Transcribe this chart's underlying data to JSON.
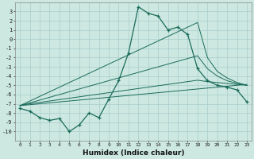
{
  "xlabel": "Humidex (Indice chaleur)",
  "bg_color": "#cce8e0",
  "grid_color": "#aacccc",
  "line_color": "#1a6b5a",
  "x_data": [
    0,
    1,
    2,
    3,
    4,
    5,
    6,
    7,
    8,
    9,
    10,
    11,
    12,
    13,
    14,
    15,
    16,
    17,
    18,
    19,
    20,
    21,
    22,
    23
  ],
  "main_series": [
    -7.5,
    -7.8,
    -8.5,
    -8.8,
    -8.6,
    -10.0,
    -9.3,
    -8.0,
    -8.5,
    -6.5,
    -4.5,
    -1.5,
    3.5,
    2.8,
    2.5,
    1.0,
    1.3,
    0.5,
    -3.2,
    -4.5,
    -5.0,
    -5.2,
    -5.5,
    -6.8
  ],
  "line1": [
    -7.2,
    -7.1,
    -7.0,
    -6.9,
    -6.8,
    -6.7,
    -6.6,
    -6.5,
    -6.4,
    -6.3,
    -6.2,
    -6.1,
    -6.0,
    -5.9,
    -5.8,
    -5.7,
    -5.6,
    -5.5,
    -5.4,
    -5.3,
    -5.2,
    -5.1,
    -5.0,
    -4.9
  ],
  "line2": [
    -7.2,
    -7.0,
    -6.85,
    -6.7,
    -6.55,
    -6.4,
    -6.25,
    -6.1,
    -5.95,
    -5.8,
    -5.65,
    -5.5,
    -5.35,
    -5.2,
    -5.05,
    -4.9,
    -4.75,
    -4.6,
    -4.45,
    -4.6,
    -4.7,
    -4.8,
    -4.9,
    -5.0
  ],
  "line3": [
    -7.2,
    -6.9,
    -6.6,
    -6.3,
    -6.0,
    -5.7,
    -5.4,
    -5.1,
    -4.8,
    -4.5,
    -4.2,
    -3.9,
    -3.6,
    -3.3,
    -3.0,
    -2.7,
    -2.4,
    -2.1,
    -1.8,
    -3.2,
    -4.0,
    -4.5,
    -4.8,
    -5.0
  ],
  "line4": [
    -7.2,
    -6.7,
    -6.2,
    -5.7,
    -5.2,
    -4.7,
    -4.2,
    -3.7,
    -3.2,
    -2.7,
    -2.2,
    -1.7,
    -1.2,
    -0.7,
    -0.2,
    0.3,
    0.8,
    1.3,
    1.8,
    -2.0,
    -3.5,
    -4.2,
    -4.7,
    -5.0
  ],
  "ylim": [
    -11,
    4
  ],
  "xlim": [
    -0.5,
    23.5
  ],
  "yticks": [
    3,
    2,
    1,
    0,
    -1,
    -2,
    -3,
    -4,
    -5,
    -6,
    -7,
    -8,
    -9,
    -10
  ],
  "xticks": [
    0,
    1,
    2,
    3,
    4,
    5,
    6,
    7,
    8,
    9,
    10,
    11,
    12,
    13,
    14,
    15,
    16,
    17,
    18,
    19,
    20,
    21,
    22,
    23
  ]
}
